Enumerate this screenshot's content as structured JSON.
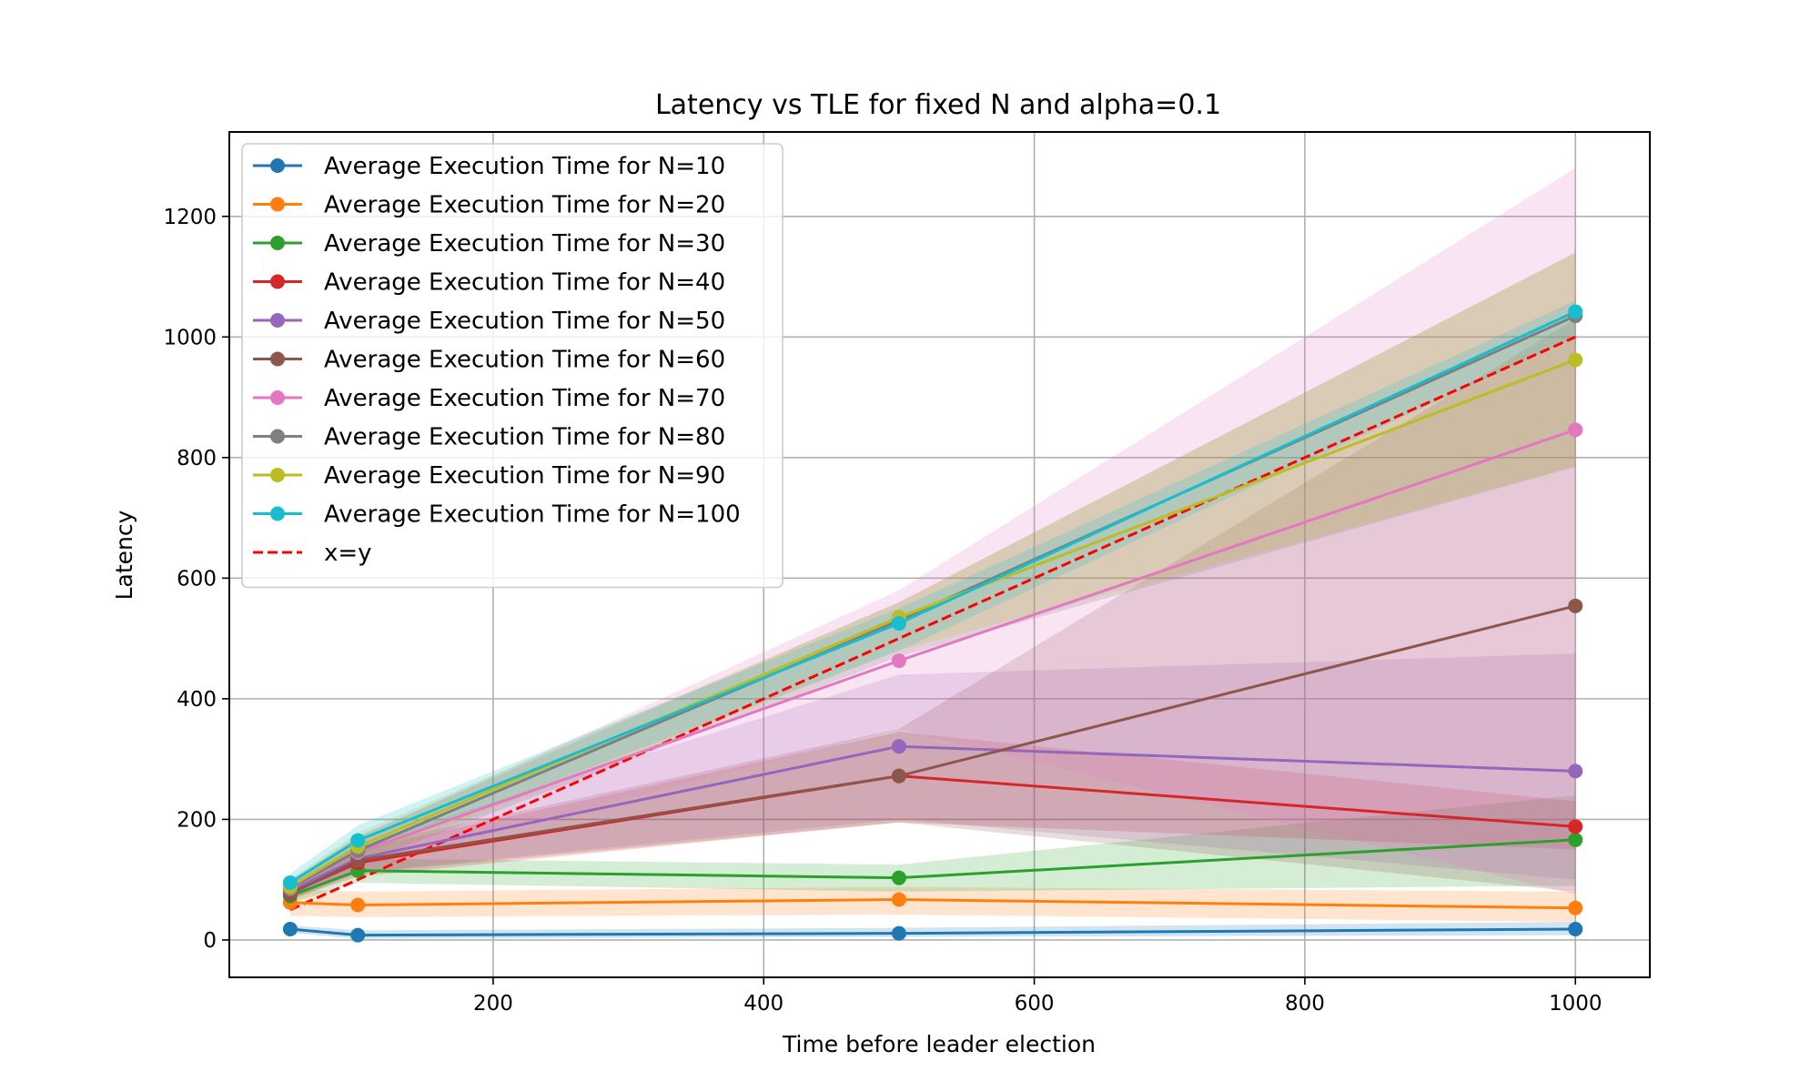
{
  "chart_data": {
    "type": "line",
    "title": "Latency vs TLE for fixed N and alpha=0.1",
    "xlabel": "Time before leader election",
    "ylabel": "Latency",
    "x": [
      50,
      100,
      500,
      1000
    ],
    "xlim": [
      5,
      1055
    ],
    "ylim": [
      -62,
      1340
    ],
    "xticks": [
      200,
      400,
      600,
      800,
      1000
    ],
    "yticks": [
      0,
      200,
      400,
      600,
      800,
      1000,
      1200
    ],
    "grid": true,
    "legend_position": "upper-left",
    "series": [
      {
        "name": "Average Execution Time for N=10",
        "color": "#1f77b4",
        "values": [
          18,
          8,
          11,
          18
        ],
        "band_lower": [
          12,
          2,
          5,
          8
        ],
        "band_upper": [
          24,
          16,
          20,
          30
        ]
      },
      {
        "name": "Average Execution Time for N=20",
        "color": "#ff7f0e",
        "values": [
          62,
          58,
          67,
          53
        ],
        "band_lower": [
          40,
          38,
          42,
          30
        ],
        "band_upper": [
          84,
          80,
          88,
          80
        ]
      },
      {
        "name": "Average Execution Time for N=30",
        "color": "#2ca02c",
        "values": [
          73,
          115,
          103,
          166
        ],
        "band_lower": [
          62,
          95,
          80,
          90
        ],
        "band_upper": [
          85,
          135,
          125,
          240
        ]
      },
      {
        "name": "Average Execution Time for N=40",
        "color": "#d62728",
        "values": [
          78,
          128,
          272,
          188
        ],
        "band_lower": [
          68,
          105,
          195,
          150
        ],
        "band_upper": [
          90,
          150,
          345,
          230
        ]
      },
      {
        "name": "Average Execution Time for N=50",
        "color": "#9467bd",
        "values": [
          82,
          135,
          321,
          280
        ],
        "band_lower": [
          72,
          112,
          200,
          100
        ],
        "band_upper": [
          92,
          158,
          440,
          475
        ]
      },
      {
        "name": "Average Execution Time for N=60",
        "color": "#8c564b",
        "values": [
          76,
          132,
          272,
          554
        ],
        "band_lower": [
          66,
          110,
          195,
          80
        ],
        "band_upper": [
          88,
          155,
          350,
          1030
        ]
      },
      {
        "name": "Average Execution Time for N=70",
        "color": "#e377c2",
        "values": [
          85,
          145,
          463,
          846
        ],
        "band_lower": [
          72,
          120,
          350,
          75
        ],
        "band_upper": [
          98,
          170,
          580,
          1280
        ]
      },
      {
        "name": "Average Execution Time for N=80",
        "color": "#7f7f7f",
        "values": [
          86,
          148,
          530,
          1035
        ],
        "band_lower": [
          74,
          125,
          470,
          785
        ],
        "band_upper": [
          99,
          172,
          560,
          1140
        ]
      },
      {
        "name": "Average Execution Time for N=90",
        "color": "#bcbd22",
        "values": [
          88,
          155,
          535,
          962
        ],
        "band_lower": [
          76,
          130,
          480,
          785
        ],
        "band_upper": [
          101,
          178,
          560,
          1140
        ]
      },
      {
        "name": "Average Execution Time for N=100",
        "color": "#17becf",
        "values": [
          95,
          165,
          525,
          1042
        ],
        "band_lower": [
          80,
          140,
          480,
          1000
        ],
        "band_upper": [
          110,
          190,
          550,
          1060
        ]
      }
    ],
    "reference_line": {
      "name": "x=y",
      "color": "#ff0000",
      "style": "dashed",
      "x": [
        50,
        1000
      ],
      "y": [
        50,
        1000
      ]
    }
  }
}
